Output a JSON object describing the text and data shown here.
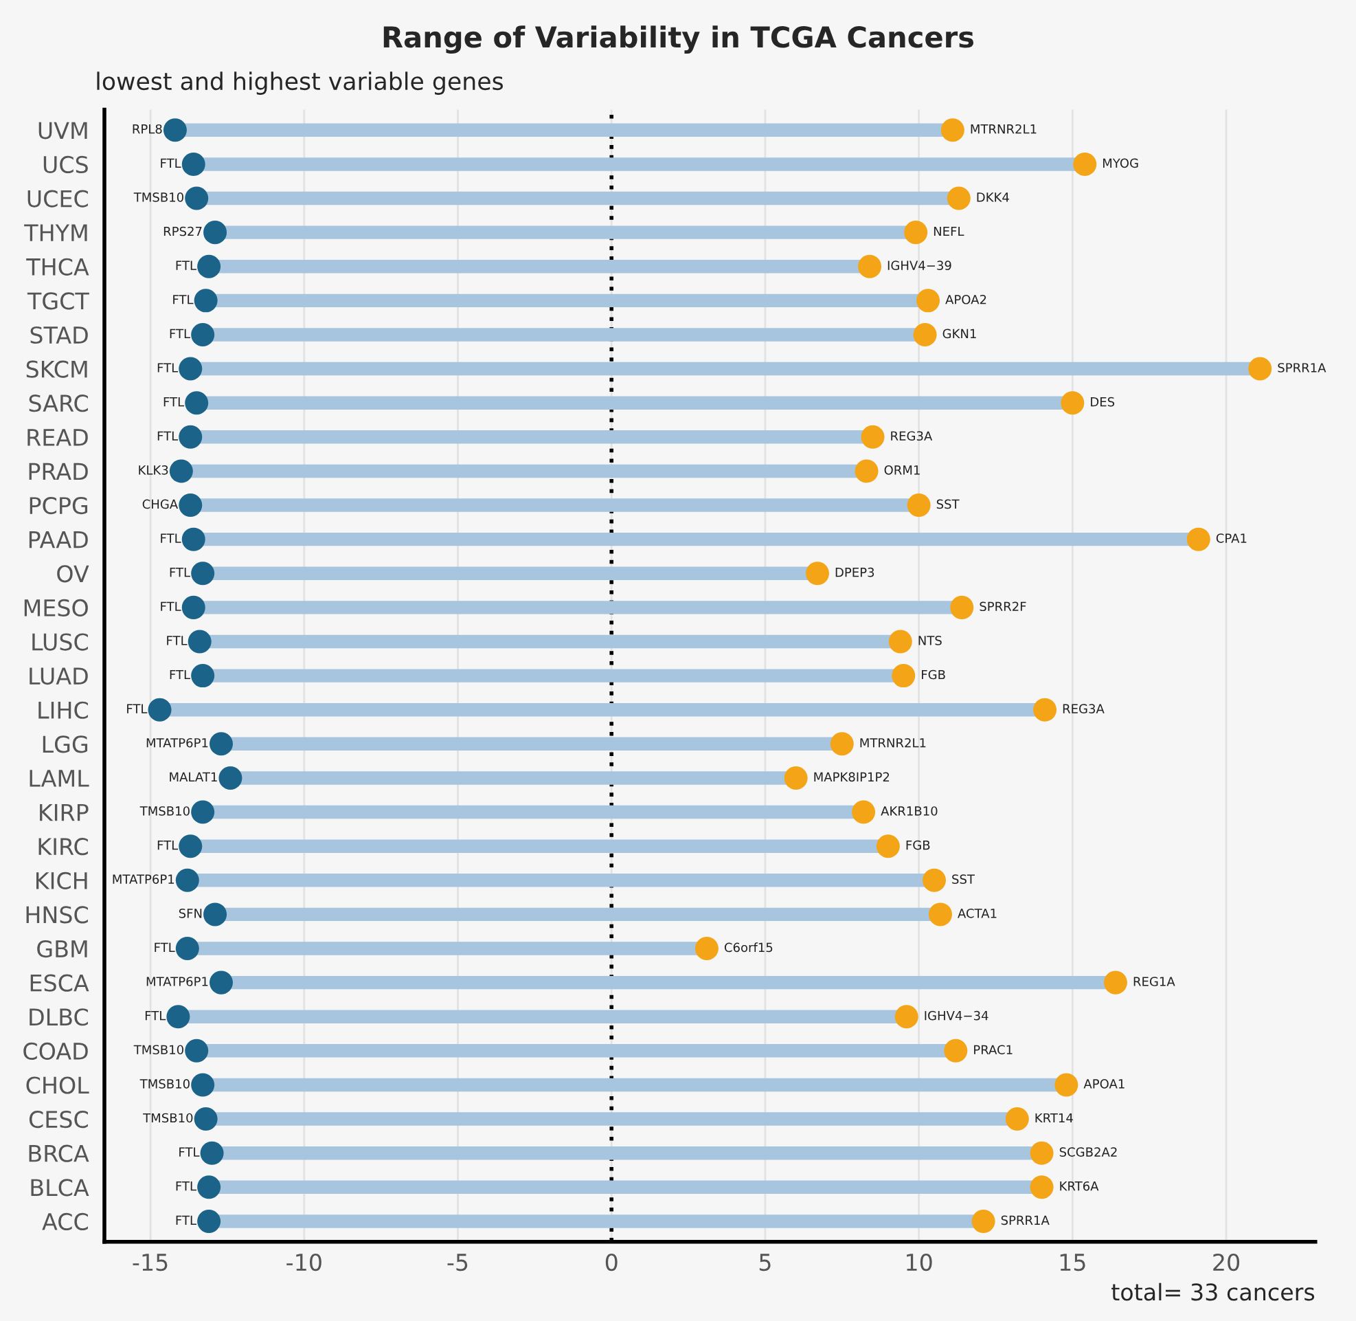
{
  "chart_data": {
    "type": "lollipop",
    "orientation": "horizontal",
    "color": "#a7c5de",
    "title": "Range of Variability in TCGA Cancers",
    "subtitle": "lowest and highest variable genes",
    "categories": [
      "UVM",
      "UCS",
      "UCEC",
      "THYM",
      "THCA",
      "TGCT",
      "STAD",
      "SKCM",
      "SARC",
      "READ",
      "PRAD",
      "PCPG",
      "PAAD",
      "OV",
      "MESO",
      "LUSC",
      "LUAD",
      "LIHC",
      "LGG",
      "LAML",
      "KIRP",
      "KIRC",
      "KICH",
      "HNSC",
      "GBM",
      "ESCA",
      "DLBC",
      "COAD",
      "CHOL",
      "CESC",
      "BRCA",
      "BLCA",
      "ACC"
    ],
    "series": [
      {
        "color": "#1b6388",
        "values": [
          -14.2,
          -13.6,
          -13.5,
          -12.9,
          -13.1,
          -13.2,
          -13.3,
          -13.7,
          -13.5,
          -13.7,
          -14.0,
          -13.7,
          -13.6,
          -13.3,
          -13.6,
          -13.4,
          -13.3,
          -14.7,
          -12.7,
          -12.4,
          -13.3,
          -13.7,
          -13.8,
          -12.9,
          -13.8,
          -12.7,
          -14.1,
          -13.5,
          -13.3,
          -13.2,
          -13.0,
          -13.1,
          -13.1
        ],
        "value_labels": [
          "RPL8",
          "FTL",
          "TMSB10",
          "RPS27",
          "FTL",
          "FTL",
          "FTL",
          "FTL",
          "FTL",
          "FTL",
          "KLK3",
          "CHGA",
          "FTL",
          "FTL",
          "FTL",
          "FTL",
          "FTL",
          "FTL",
          "MTATP6P1",
          "MALAT1",
          "TMSB10",
          "FTL",
          "MTATP6P1",
          "SFN",
          "FTL",
          "MTATP6P1",
          "FTL",
          "TMSB10",
          "TMSB10",
          "TMSB10",
          "FTL",
          "FTL",
          "FTL"
        ]
      },
      {
        "color": "#f4a517",
        "values": [
          11.1,
          15.4,
          11.3,
          9.9,
          8.4,
          10.3,
          10.2,
          21.1,
          15.0,
          8.5,
          8.3,
          10.0,
          19.1,
          6.7,
          11.4,
          9.4,
          9.5,
          14.1,
          7.5,
          6.0,
          8.2,
          9.0,
          10.5,
          10.7,
          3.1,
          16.4,
          9.6,
          11.2,
          14.8,
          13.2,
          14.0,
          14.0,
          12.1
        ],
        "value_labels": [
          "MTRNR2L1",
          "MYOG",
          "DKK4",
          "NEFL",
          "IGHV4−39",
          "APOA2",
          "GKN1",
          "SPRR1A",
          "DES",
          "REG3A",
          "ORM1",
          "SST",
          "CPA1",
          "DPEP3",
          "SPRR2F",
          "NTS",
          "FGB",
          "REG3A",
          "MTRNR2L1",
          "MAPK8IP1P2",
          "AKR1B10",
          "FGB",
          "SST",
          "ACTA1",
          "C6orf15",
          "REG1A",
          "IGHV4−34",
          "PRAC1",
          "APOA1",
          "KRT14",
          "SCGB2A2",
          "KRT6A",
          "SPRR1A"
        ]
      }
    ],
    "xlim": [
      -16.5,
      22.9
    ],
    "xticks": [
      -15,
      -10,
      -5,
      0,
      5,
      10,
      15,
      20
    ],
    "grid": "x",
    "ref_lines": [
      {
        "axis": "x",
        "value": 0,
        "color": "#000000",
        "line_style": "dotted"
      }
    ],
    "annotations": [
      "total= 33 cancers"
    ]
  }
}
